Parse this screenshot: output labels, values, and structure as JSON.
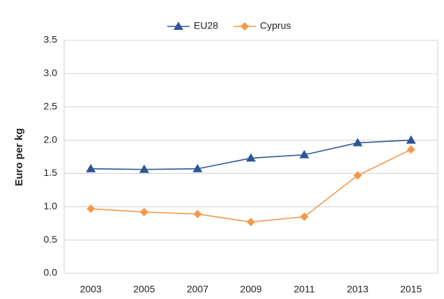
{
  "chart_data": {
    "type": "line",
    "y_label": "Euro per kg",
    "categories": [
      "2003",
      "2005",
      "2007",
      "2009",
      "2011",
      "2013",
      "2015"
    ],
    "series": [
      {
        "name": "EU28",
        "color": "#2e5597",
        "marker": "triangle",
        "values": [
          1.57,
          1.56,
          1.57,
          1.73,
          1.78,
          1.96,
          2.0
        ]
      },
      {
        "name": "Cyprus",
        "color": "#f79646",
        "marker": "diamond",
        "values": [
          0.97,
          0.92,
          0.89,
          0.77,
          0.85,
          1.47,
          1.86
        ]
      }
    ],
    "ylim": [
      0,
      3.5
    ],
    "yticks": [
      {
        "value": 0,
        "label": "0.0"
      },
      {
        "value": 0.5,
        "label": "0.5"
      },
      {
        "value": 1,
        "label": "1.0"
      },
      {
        "value": 1.5,
        "label": "1.5"
      },
      {
        "value": 2,
        "label": "2.0"
      },
      {
        "value": 2.5,
        "label": "2.5"
      },
      {
        "value": 3,
        "label": "3.0"
      },
      {
        "value": 3.5,
        "label": "3.5"
      }
    ],
    "grid": true,
    "legend": "top"
  }
}
